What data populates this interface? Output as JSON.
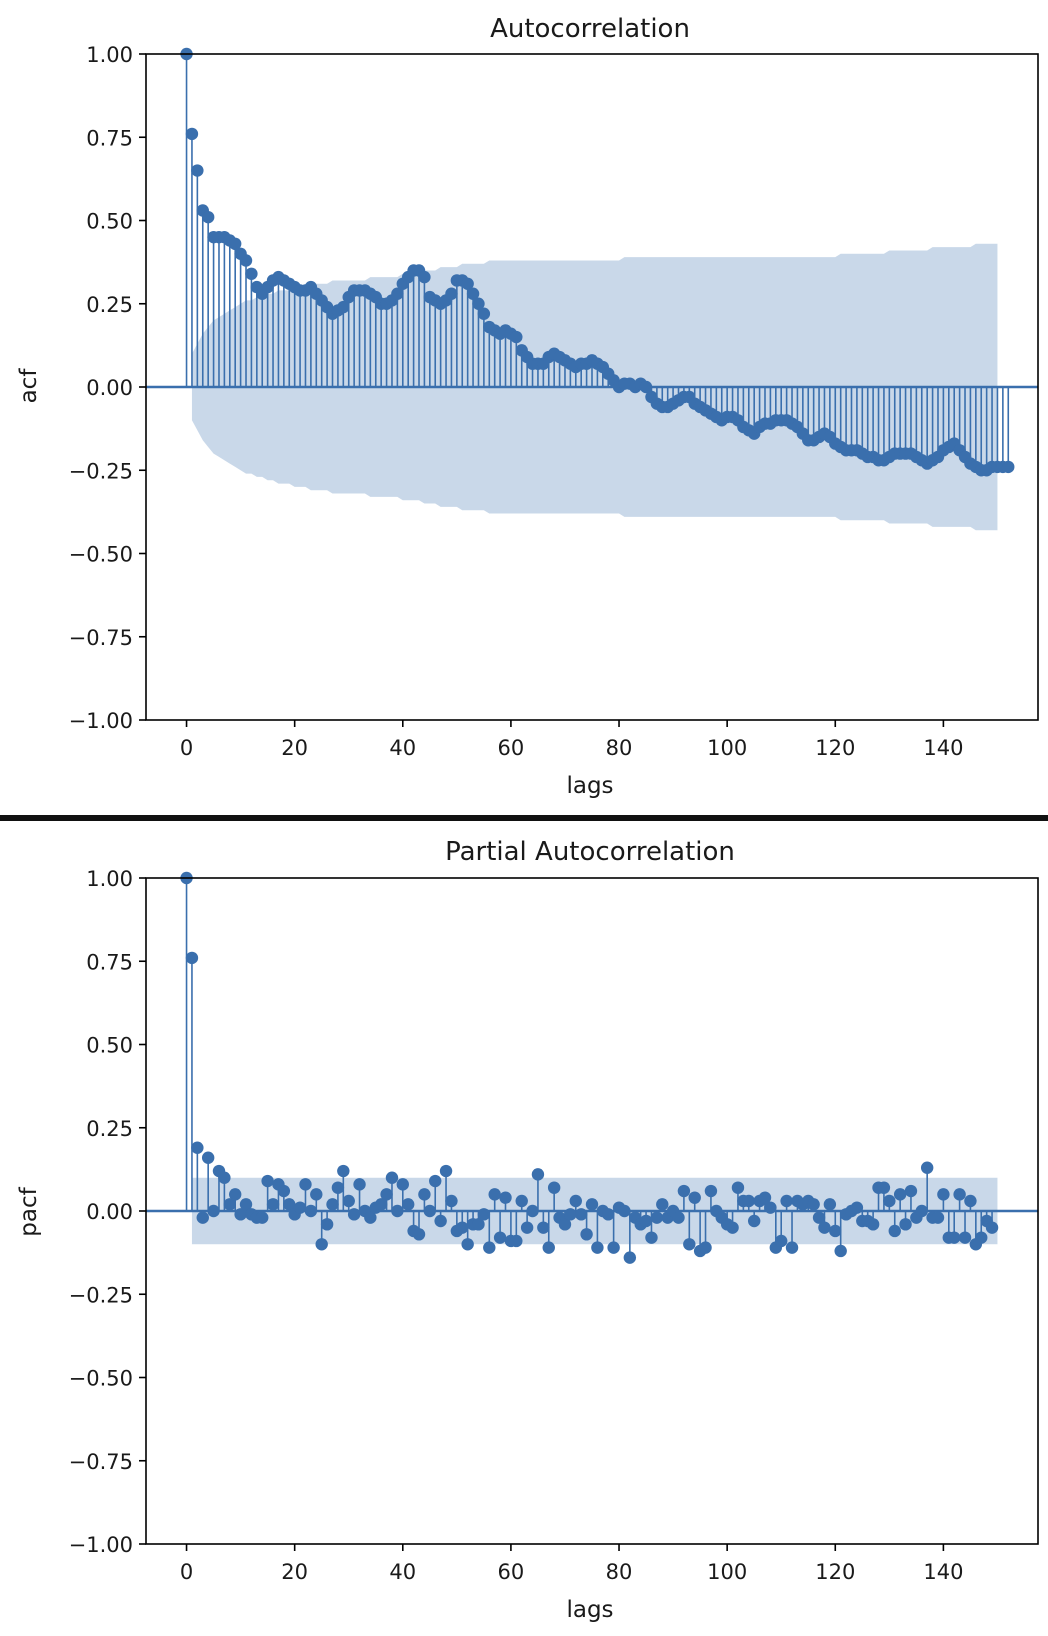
{
  "colors": {
    "series": "#3a6fad",
    "band": "#c6d6e8",
    "axis": "#000000",
    "zeroline": "#3a6fad"
  },
  "chart_data": [
    {
      "type": "stem",
      "title": "Autocorrelation",
      "xlabel": "lags",
      "ylabel": "acf",
      "xlim": [
        -7.5,
        157.5
      ],
      "ylim": [
        -1.0,
        1.0
      ],
      "xticks": [
        0,
        20,
        40,
        60,
        80,
        100,
        120,
        140
      ],
      "xtick_labels": [
        "0",
        "20",
        "40",
        "60",
        "80",
        "100",
        "120",
        "140"
      ],
      "yticks": [
        1.0,
        0.75,
        0.5,
        0.25,
        0.0,
        -0.25,
        -0.5,
        -0.75,
        -1.0
      ],
      "ytick_labels": [
        "1.00",
        "0.75",
        "0.50",
        "0.25",
        "0.00",
        "−0.25",
        "−0.50",
        "−0.75",
        "−1.00"
      ],
      "lags_start": 0,
      "values": [
        1.0,
        0.76,
        0.65,
        0.53,
        0.51,
        0.45,
        0.45,
        0.45,
        0.44,
        0.43,
        0.4,
        0.38,
        0.34,
        0.3,
        0.28,
        0.3,
        0.32,
        0.33,
        0.32,
        0.31,
        0.3,
        0.29,
        0.29,
        0.3,
        0.28,
        0.26,
        0.24,
        0.22,
        0.23,
        0.24,
        0.27,
        0.29,
        0.29,
        0.29,
        0.28,
        0.27,
        0.25,
        0.25,
        0.26,
        0.28,
        0.31,
        0.33,
        0.35,
        0.35,
        0.33,
        0.27,
        0.26,
        0.25,
        0.26,
        0.28,
        0.32,
        0.32,
        0.31,
        0.28,
        0.25,
        0.22,
        0.18,
        0.17,
        0.16,
        0.17,
        0.16,
        0.15,
        0.11,
        0.09,
        0.07,
        0.07,
        0.07,
        0.09,
        0.1,
        0.09,
        0.08,
        0.07,
        0.06,
        0.07,
        0.07,
        0.08,
        0.07,
        0.06,
        0.04,
        0.02,
        0.0,
        0.01,
        0.01,
        0.0,
        0.01,
        0.0,
        -0.03,
        -0.05,
        -0.06,
        -0.06,
        -0.05,
        -0.04,
        -0.03,
        -0.03,
        -0.05,
        -0.06,
        -0.07,
        -0.08,
        -0.09,
        -0.1,
        -0.09,
        -0.09,
        -0.1,
        -0.12,
        -0.13,
        -0.14,
        -0.12,
        -0.11,
        -0.11,
        -0.1,
        -0.1,
        -0.1,
        -0.11,
        -0.12,
        -0.14,
        -0.16,
        -0.16,
        -0.15,
        -0.14,
        -0.15,
        -0.17,
        -0.18,
        -0.19,
        -0.19,
        -0.19,
        -0.2,
        -0.21,
        -0.21,
        -0.22,
        -0.22,
        -0.21,
        -0.2,
        -0.2,
        -0.2,
        -0.2,
        -0.21,
        -0.22,
        -0.23,
        -0.22,
        -0.21,
        -0.19,
        -0.18,
        -0.17,
        -0.19,
        -0.21,
        -0.23,
        -0.24,
        -0.25,
        -0.25,
        -0.24,
        -0.24,
        -0.24,
        -0.24
      ],
      "conf_upper": [
        0.0,
        0.1,
        0.13,
        0.16,
        0.18,
        0.2,
        0.21,
        0.22,
        0.23,
        0.24,
        0.25,
        0.26,
        0.26,
        0.27,
        0.27,
        0.28,
        0.28,
        0.29,
        0.29,
        0.29,
        0.3,
        0.3,
        0.3,
        0.31,
        0.31,
        0.31,
        0.31,
        0.32,
        0.32,
        0.32,
        0.32,
        0.32,
        0.32,
        0.32,
        0.33,
        0.33,
        0.33,
        0.33,
        0.33,
        0.33,
        0.34,
        0.34,
        0.34,
        0.34,
        0.35,
        0.35,
        0.35,
        0.36,
        0.36,
        0.36,
        0.36,
        0.37,
        0.37,
        0.37,
        0.37,
        0.37,
        0.38,
        0.38,
        0.38,
        0.38,
        0.38,
        0.38,
        0.38,
        0.38,
        0.38,
        0.38,
        0.38,
        0.38,
        0.38,
        0.38,
        0.38,
        0.38,
        0.38,
        0.38,
        0.38,
        0.38,
        0.38,
        0.38,
        0.38,
        0.38,
        0.38,
        0.39,
        0.39,
        0.39,
        0.39,
        0.39,
        0.39,
        0.39,
        0.39,
        0.39,
        0.39,
        0.39,
        0.39,
        0.39,
        0.39,
        0.39,
        0.39,
        0.39,
        0.39,
        0.39,
        0.39,
        0.39,
        0.39,
        0.39,
        0.39,
        0.39,
        0.39,
        0.39,
        0.39,
        0.39,
        0.39,
        0.39,
        0.39,
        0.39,
        0.39,
        0.39,
        0.39,
        0.39,
        0.39,
        0.39,
        0.39,
        0.4,
        0.4,
        0.4,
        0.4,
        0.4,
        0.4,
        0.4,
        0.4,
        0.4,
        0.41,
        0.41,
        0.41,
        0.41,
        0.41,
        0.41,
        0.41,
        0.41,
        0.42,
        0.42,
        0.42,
        0.42,
        0.42,
        0.42,
        0.42,
        0.42,
        0.43,
        0.43,
        0.43,
        0.43,
        0.43
      ]
    },
    {
      "type": "stem",
      "title": "Partial Autocorrelation",
      "xlabel": "lags",
      "ylabel": "pacf",
      "xlim": [
        -7.5,
        157.5
      ],
      "ylim": [
        -1.0,
        1.0
      ],
      "xticks": [
        0,
        20,
        40,
        60,
        80,
        100,
        120,
        140
      ],
      "xtick_labels": [
        "0",
        "20",
        "40",
        "60",
        "80",
        "100",
        "120",
        "140"
      ],
      "yticks": [
        1.0,
        0.75,
        0.5,
        0.25,
        0.0,
        -0.25,
        -0.5,
        -0.75,
        -1.0
      ],
      "ytick_labels": [
        "1.00",
        "0.75",
        "0.50",
        "0.25",
        "0.00",
        "−0.25",
        "−0.50",
        "−0.75",
        "−1.00"
      ],
      "lags_start": 0,
      "values": [
        1.0,
        0.76,
        0.19,
        -0.02,
        0.16,
        0.0,
        0.12,
        0.1,
        0.02,
        0.05,
        -0.01,
        0.02,
        -0.01,
        -0.02,
        -0.02,
        0.09,
        0.02,
        0.08,
        0.06,
        0.02,
        -0.01,
        0.01,
        0.08,
        0.0,
        0.05,
        -0.1,
        -0.04,
        0.02,
        0.07,
        0.12,
        0.03,
        -0.01,
        0.08,
        0.0,
        -0.02,
        0.01,
        0.02,
        0.05,
        0.1,
        0.0,
        0.08,
        0.02,
        -0.06,
        -0.07,
        0.05,
        0.0,
        0.09,
        -0.03,
        0.12,
        0.03,
        -0.06,
        -0.05,
        -0.1,
        -0.04,
        -0.04,
        -0.01,
        -0.11,
        0.05,
        -0.08,
        0.04,
        -0.09,
        -0.09,
        0.03,
        -0.05,
        0.0,
        0.11,
        -0.05,
        -0.11,
        0.07,
        -0.02,
        -0.04,
        -0.01,
        0.03,
        -0.01,
        -0.07,
        0.02,
        -0.11,
        0.0,
        -0.01,
        -0.11,
        0.01,
        0.0,
        -0.14,
        -0.02,
        -0.04,
        -0.03,
        -0.08,
        -0.02,
        0.02,
        -0.02,
        0.0,
        -0.02,
        0.06,
        -0.1,
        0.04,
        -0.12,
        -0.11,
        0.06,
        0.0,
        -0.02,
        -0.04,
        -0.05,
        0.07,
        0.03,
        0.03,
        -0.03,
        0.03,
        0.04,
        0.01,
        -0.11,
        -0.09,
        0.03,
        -0.11,
        0.03,
        0.02,
        0.03,
        0.02,
        -0.02,
        -0.05,
        0.02,
        -0.06,
        -0.12,
        -0.01,
        0.0,
        0.01,
        -0.03,
        -0.03,
        -0.04,
        0.07,
        0.07,
        0.03,
        -0.06,
        0.05,
        -0.04,
        0.06,
        -0.02,
        0.0,
        0.13,
        -0.02,
        -0.02,
        0.05,
        -0.08,
        -0.08,
        0.05,
        -0.08,
        0.03,
        -0.1,
        -0.08,
        -0.03,
        -0.05
      ],
      "conf_upper": [
        0.0,
        0.1,
        0.1,
        0.1,
        0.1,
        0.1,
        0.1,
        0.1,
        0.1,
        0.1,
        0.1,
        0.1,
        0.1,
        0.1,
        0.1,
        0.1,
        0.1,
        0.1,
        0.1,
        0.1,
        0.1,
        0.1,
        0.1,
        0.1,
        0.1,
        0.1,
        0.1,
        0.1,
        0.1,
        0.1,
        0.1,
        0.1,
        0.1,
        0.1,
        0.1,
        0.1,
        0.1,
        0.1,
        0.1,
        0.1,
        0.1,
        0.1,
        0.1,
        0.1,
        0.1,
        0.1,
        0.1,
        0.1,
        0.1,
        0.1,
        0.1,
        0.1,
        0.1,
        0.1,
        0.1,
        0.1,
        0.1,
        0.1,
        0.1,
        0.1,
        0.1,
        0.1,
        0.1,
        0.1,
        0.1,
        0.1,
        0.1,
        0.1,
        0.1,
        0.1,
        0.1,
        0.1,
        0.1,
        0.1,
        0.1,
        0.1,
        0.1,
        0.1,
        0.1,
        0.1,
        0.1,
        0.1,
        0.1,
        0.1,
        0.1,
        0.1,
        0.1,
        0.1,
        0.1,
        0.1,
        0.1,
        0.1,
        0.1,
        0.1,
        0.1,
        0.1,
        0.1,
        0.1,
        0.1,
        0.1,
        0.1,
        0.1,
        0.1,
        0.1,
        0.1,
        0.1,
        0.1,
        0.1,
        0.1,
        0.1,
        0.1,
        0.1,
        0.1,
        0.1,
        0.1,
        0.1,
        0.1,
        0.1,
        0.1,
        0.1,
        0.1,
        0.1,
        0.1,
        0.1,
        0.1,
        0.1,
        0.1,
        0.1,
        0.1,
        0.1,
        0.1,
        0.1,
        0.1,
        0.1,
        0.1,
        0.1,
        0.1,
        0.1,
        0.1,
        0.1,
        0.1,
        0.1,
        0.1,
        0.1,
        0.1,
        0.1,
        0.1,
        0.1,
        0.1,
        0.1,
        0.1
      ]
    }
  ]
}
